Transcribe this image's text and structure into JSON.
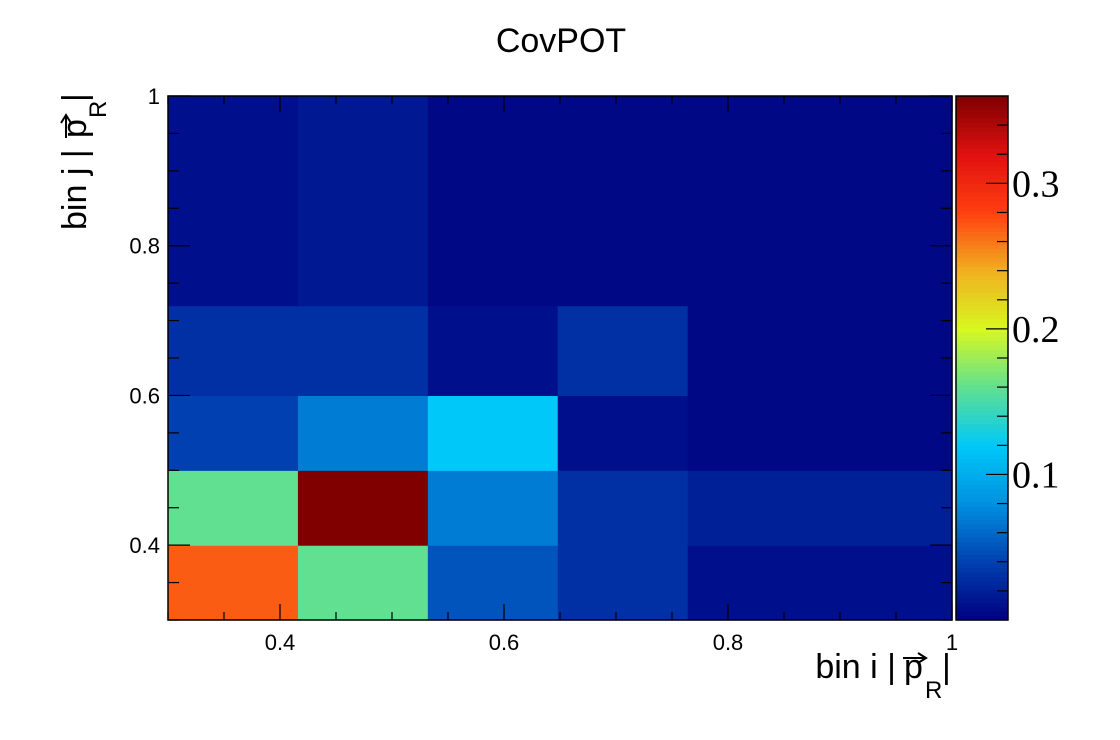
{
  "chart_data": {
    "type": "heatmap",
    "title": "CovPOT",
    "xlabel": {
      "text": "bin i |",
      "symbol": "p",
      "subscript": "R",
      "suffix": "|"
    },
    "ylabel": {
      "text": "bin j |",
      "symbol": "p",
      "subscript": "R",
      "suffix": "|"
    },
    "xlim": [
      0.3,
      1.0
    ],
    "ylim": [
      0.3,
      1.0
    ],
    "x_ticks": [
      {
        "value": 0.4,
        "label": "0.4"
      },
      {
        "value": 0.6,
        "label": "0.6"
      },
      {
        "value": 0.8,
        "label": "0.8"
      },
      {
        "value": 1.0,
        "label": "1"
      }
    ],
    "y_ticks": [
      {
        "value": 0.4,
        "label": "0.4"
      },
      {
        "value": 0.6,
        "label": "0.6"
      },
      {
        "value": 0.8,
        "label": "0.8"
      },
      {
        "value": 1.0,
        "label": "1"
      }
    ],
    "x_bin_edges": [
      0.3,
      0.416,
      0.532,
      0.648,
      0.764,
      0.882,
      1.0
    ],
    "y_bin_edges": [
      0.3,
      0.4,
      0.5,
      0.6,
      0.72,
      0.84,
      1.0
    ],
    "z_values": [
      [
        0.27,
        0.16,
        0.05,
        0.03,
        0.01,
        0.01
      ],
      [
        0.16,
        0.36,
        0.07,
        0.03,
        0.02,
        0.02
      ],
      [
        0.04,
        0.07,
        0.12,
        0.01,
        0.005,
        0.005
      ],
      [
        0.03,
        0.03,
        0.01,
        0.03,
        0.005,
        0.005
      ],
      [
        0.01,
        0.015,
        0.005,
        0.005,
        0.005,
        0.005
      ],
      [
        0.01,
        0.015,
        0.005,
        0.005,
        0.005,
        0.005
      ]
    ],
    "zlim": [
      0.0,
      0.36
    ],
    "z_ticks": [
      {
        "value": 0.1,
        "label": "0.1"
      },
      {
        "value": 0.2,
        "label": "0.2"
      },
      {
        "value": 0.3,
        "label": "0.3"
      }
    ],
    "colormap": [
      "#000080",
      "#0040b0",
      "#0090e0",
      "#00c8f8",
      "#60e090",
      "#d8f820",
      "#f0b020",
      "#ff4010",
      "#e01010",
      "#800000"
    ],
    "grid": false,
    "colorbar": "right"
  }
}
